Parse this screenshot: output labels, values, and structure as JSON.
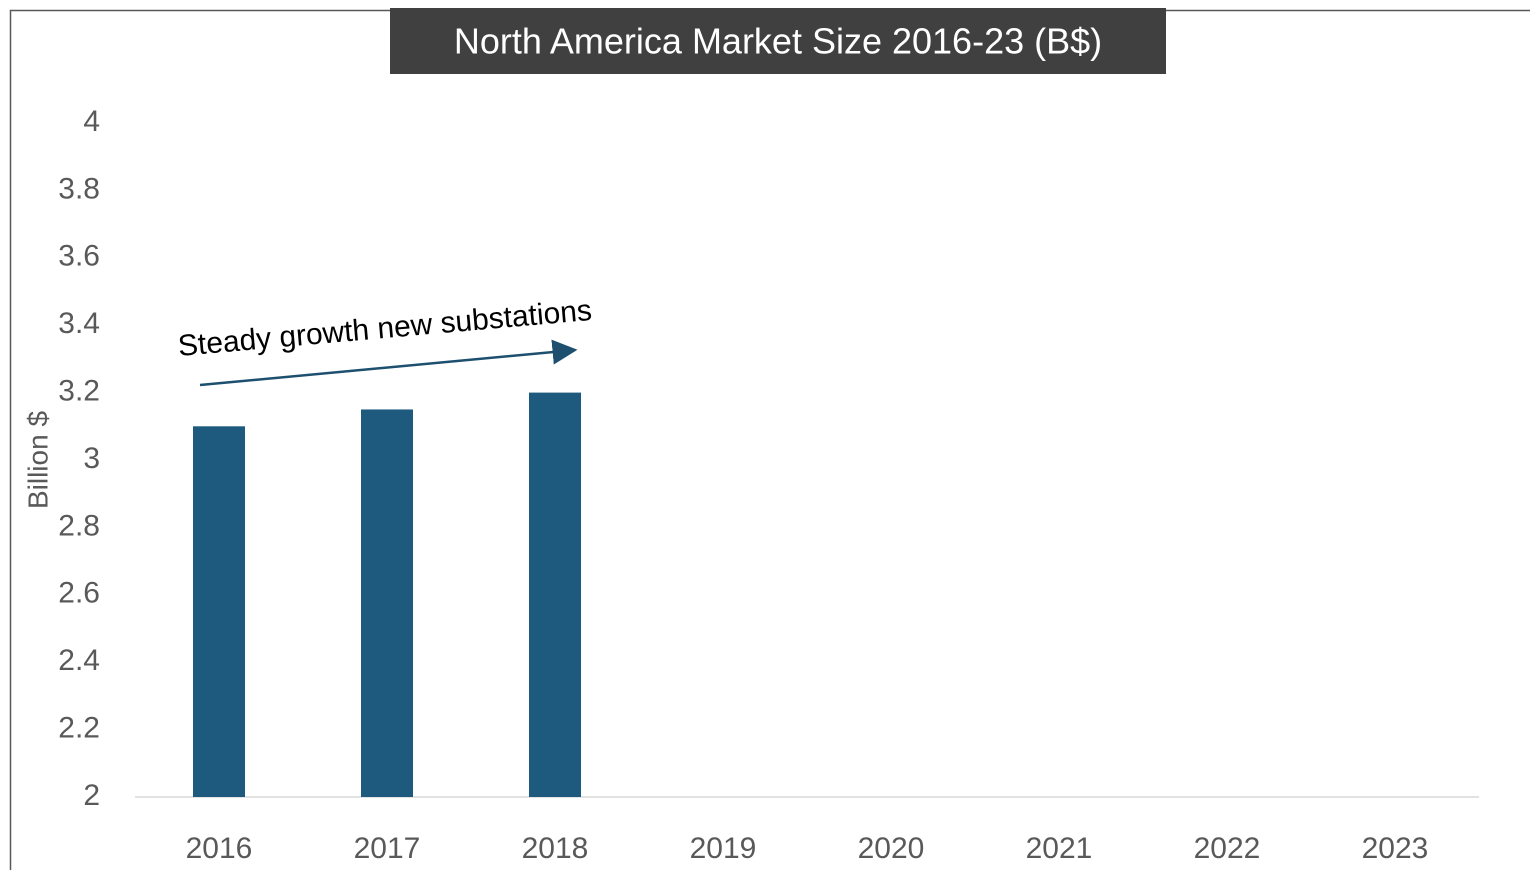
{
  "chart_data": {
    "type": "bar",
    "title": "North America Market Size 2016-23 (B$)",
    "y_label": "Billion $",
    "annotation": "Steady growth new substations",
    "categories": [
      "2016",
      "2017",
      "2018",
      "2019",
      "2020",
      "2021",
      "2022",
      "2023"
    ],
    "values": [
      3.1,
      3.15,
      3.2,
      null,
      null,
      null,
      null,
      null
    ],
    "color": "#1d5a7d",
    "ylim": [
      2,
      4
    ],
    "yticks": [
      2,
      2.2,
      2.4,
      2.6,
      2.8,
      3,
      3.2,
      3.4,
      3.6,
      3.8,
      4
    ],
    "grid": false
  }
}
